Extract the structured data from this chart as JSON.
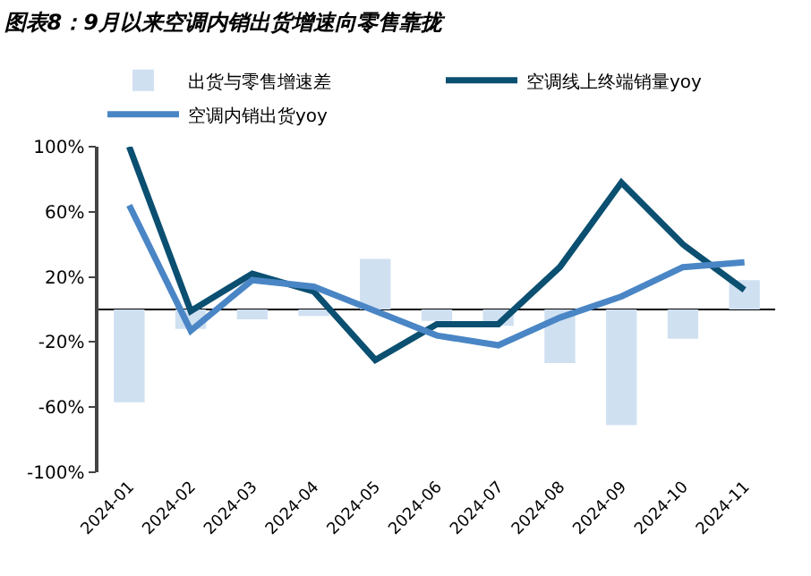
{
  "chart_data": {
    "type": "line",
    "title": "图表8：9月以来空调内销出货增速向零售靠拢",
    "categories": [
      "2024-01",
      "2024-02",
      "2024-03",
      "2024-04",
      "2024-05",
      "2024-06",
      "2024-07",
      "2024-08",
      "2024-09",
      "2024-10",
      "2024-11"
    ],
    "series": [
      {
        "name": "出货与零售增速差",
        "type": "bar",
        "color": "#cfe0f1",
        "values": [
          -57,
          -12,
          -6,
          -4,
          31,
          -7,
          -10,
          -33,
          -71,
          -18,
          18
        ]
      },
      {
        "name": "空调线上终端销量yoy",
        "color": "#0b4f71",
        "values": [
          100,
          -1,
          22,
          11,
          -31,
          -9,
          -9,
          26,
          78,
          40,
          12
        ]
      },
      {
        "name": "空调内销出货yoy",
        "color": "#4a86c5",
        "values": [
          64,
          -13,
          18,
          14,
          -1,
          -16,
          -22,
          -5,
          8,
          26,
          29
        ]
      }
    ],
    "ylim": [
      -100,
      100
    ],
    "yticks": [
      {
        "value": -100,
        "label": "-100%"
      },
      {
        "value": -60,
        "label": "-60%"
      },
      {
        "value": -20,
        "label": "-20%"
      },
      {
        "value": 20,
        "label": "20%"
      },
      {
        "value": 60,
        "label": "60%"
      },
      {
        "value": 100,
        "label": "100%"
      }
    ],
    "grid": false,
    "legend": "top",
    "marker": "none",
    "line_style": "solid"
  }
}
